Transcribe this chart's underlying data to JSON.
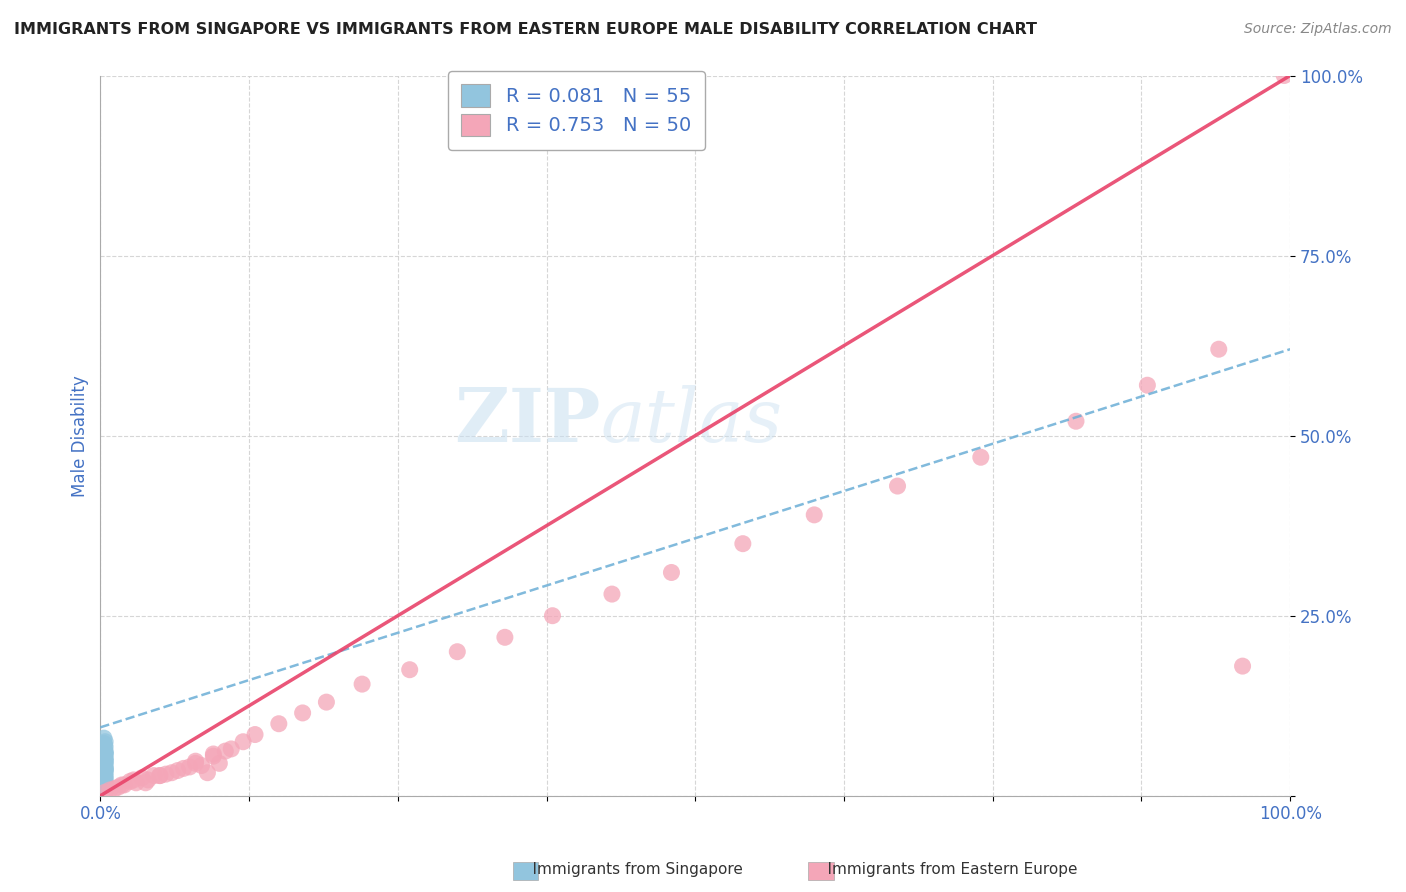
{
  "title": "IMMIGRANTS FROM SINGAPORE VS IMMIGRANTS FROM EASTERN EUROPE MALE DISABILITY CORRELATION CHART",
  "source": "Source: ZipAtlas.com",
  "ylabel": "Male Disability",
  "xlim": [
    0,
    1.0
  ],
  "ylim": [
    0,
    1.0
  ],
  "xticks": [
    0.0,
    0.125,
    0.25,
    0.375,
    0.5,
    0.625,
    0.75,
    0.875,
    1.0
  ],
  "xtick_labels": [
    "0.0%",
    "",
    "",
    "",
    "",
    "",
    "",
    "",
    "100.0%"
  ],
  "ytick_labels": [
    "",
    "25.0%",
    "50.0%",
    "75.0%",
    "100.0%"
  ],
  "yticks": [
    0.0,
    0.25,
    0.5,
    0.75,
    1.0
  ],
  "singapore_color": "#92c5de",
  "eastern_europe_color": "#f4a6b8",
  "singapore_line_color": "#6baed6",
  "eastern_europe_line_color": "#e8436a",
  "R_singapore": 0.081,
  "N_singapore": 55,
  "R_eastern_europe": 0.753,
  "N_eastern_europe": 50,
  "watermark_zip": "ZIP",
  "watermark_atlas": "atlas",
  "background_color": "#ffffff",
  "grid_color": "#cccccc",
  "title_color": "#222222",
  "axis_label_color": "#4472c4",
  "tick_label_color": "#4472c4",
  "singapore_x": [
    0.003,
    0.003,
    0.004,
    0.003,
    0.004,
    0.004,
    0.003,
    0.003,
    0.004,
    0.004,
    0.003,
    0.003,
    0.004,
    0.003,
    0.003,
    0.004,
    0.003,
    0.004,
    0.003,
    0.003,
    0.004,
    0.003,
    0.004,
    0.004,
    0.003,
    0.003,
    0.004,
    0.003,
    0.003,
    0.004,
    0.004,
    0.003,
    0.003,
    0.004,
    0.003,
    0.004,
    0.003,
    0.003,
    0.004,
    0.003,
    0.003,
    0.004,
    0.004,
    0.003,
    0.003,
    0.004,
    0.003,
    0.003,
    0.004,
    0.003,
    0.003,
    0.004,
    0.003,
    0.003,
    0.004
  ],
  "singapore_y": [
    0.045,
    0.05,
    0.038,
    0.08,
    0.06,
    0.042,
    0.055,
    0.022,
    0.035,
    0.025,
    0.032,
    0.065,
    0.048,
    0.07,
    0.028,
    0.036,
    0.055,
    0.015,
    0.042,
    0.068,
    0.075,
    0.031,
    0.058,
    0.045,
    0.022,
    0.038,
    0.062,
    0.048,
    0.025,
    0.052,
    0.018,
    0.038,
    0.072,
    0.032,
    0.055,
    0.028,
    0.065,
    0.042,
    0.018,
    0.035,
    0.025,
    0.058,
    0.048,
    0.072,
    0.032,
    0.038,
    0.028,
    0.055,
    0.022,
    0.042,
    0.015,
    0.068,
    0.035,
    0.025,
    0.052
  ],
  "eastern_europe_x": [
    0.004,
    0.012,
    0.02,
    0.03,
    0.04,
    0.05,
    0.065,
    0.075,
    0.09,
    0.1,
    0.015,
    0.025,
    0.035,
    0.055,
    0.07,
    0.08,
    0.095,
    0.11,
    0.085,
    0.045,
    0.06,
    0.08,
    0.095,
    0.105,
    0.12,
    0.008,
    0.018,
    0.028,
    0.038,
    0.05,
    0.13,
    0.15,
    0.17,
    0.19,
    0.22,
    0.26,
    0.3,
    0.34,
    0.38,
    0.43,
    0.48,
    0.54,
    0.6,
    0.67,
    0.74,
    0.82,
    0.88,
    0.94,
    0.96,
    0.995
  ],
  "eastern_europe_y": [
    0.005,
    0.01,
    0.015,
    0.018,
    0.022,
    0.028,
    0.035,
    0.04,
    0.032,
    0.045,
    0.012,
    0.02,
    0.025,
    0.03,
    0.038,
    0.048,
    0.055,
    0.065,
    0.042,
    0.028,
    0.032,
    0.045,
    0.058,
    0.062,
    0.075,
    0.008,
    0.015,
    0.022,
    0.018,
    0.028,
    0.085,
    0.1,
    0.115,
    0.13,
    0.155,
    0.175,
    0.2,
    0.22,
    0.25,
    0.28,
    0.31,
    0.35,
    0.39,
    0.43,
    0.47,
    0.52,
    0.57,
    0.62,
    0.18,
    1.0
  ],
  "sg_line_x0": 0.0,
  "sg_line_y0": 0.095,
  "sg_line_x1": 1.0,
  "sg_line_y1": 0.62,
  "ee_line_x0": 0.0,
  "ee_line_y0": 0.0,
  "ee_line_x1": 1.0,
  "ee_line_y1": 1.0
}
